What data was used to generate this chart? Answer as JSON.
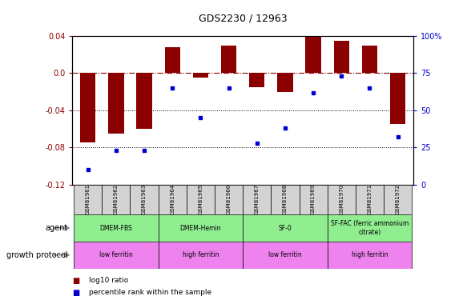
{
  "title": "GDS2230 / 12963",
  "samples": [
    "GSM81961",
    "GSM81962",
    "GSM81963",
    "GSM81964",
    "GSM81965",
    "GSM81966",
    "GSM81967",
    "GSM81968",
    "GSM81969",
    "GSM81970",
    "GSM81971",
    "GSM81972"
  ],
  "log10_ratio": [
    -0.075,
    -0.065,
    -0.06,
    0.028,
    -0.005,
    0.03,
    -0.015,
    -0.02,
    0.04,
    0.035,
    0.03,
    -0.055
  ],
  "percentile_rank": [
    10,
    23,
    23,
    65,
    45,
    65,
    28,
    38,
    62,
    73,
    65,
    32
  ],
  "agent_configs": [
    {
      "label": "DMEM-FBS",
      "start": 0,
      "end": 3
    },
    {
      "label": "DMEM-Hemin",
      "start": 3,
      "end": 6
    },
    {
      "label": "SF-0",
      "start": 6,
      "end": 9
    },
    {
      "label": "SF-FAC (ferric ammonium\ncitrate)",
      "start": 9,
      "end": 12
    }
  ],
  "growth_configs": [
    {
      "label": "low ferritin",
      "start": 0,
      "end": 3
    },
    {
      "label": "high ferritin",
      "start": 3,
      "end": 6
    },
    {
      "label": "low ferritin",
      "start": 6,
      "end": 9
    },
    {
      "label": "high ferritin",
      "start": 9,
      "end": 12
    }
  ],
  "agent_color": "#90EE90",
  "growth_color_low": "#EE82EE",
  "growth_color_high": "#EE82EE",
  "bar_color": "#8B0000",
  "dot_color": "#0000CD",
  "sample_label_bg": "#D3D3D3",
  "ylim_left": [
    -0.12,
    0.04
  ],
  "ylim_right": [
    0,
    100
  ],
  "yticks_left": [
    -0.12,
    -0.08,
    -0.04,
    0.0,
    0.04
  ],
  "yticks_right": [
    0,
    25,
    50,
    75,
    100
  ],
  "hline_positions": [
    -0.04,
    -0.08
  ],
  "legend_items": [
    {
      "color": "#8B0000",
      "label": "log10 ratio"
    },
    {
      "color": "#0000CD",
      "label": "percentile rank within the sample"
    }
  ]
}
